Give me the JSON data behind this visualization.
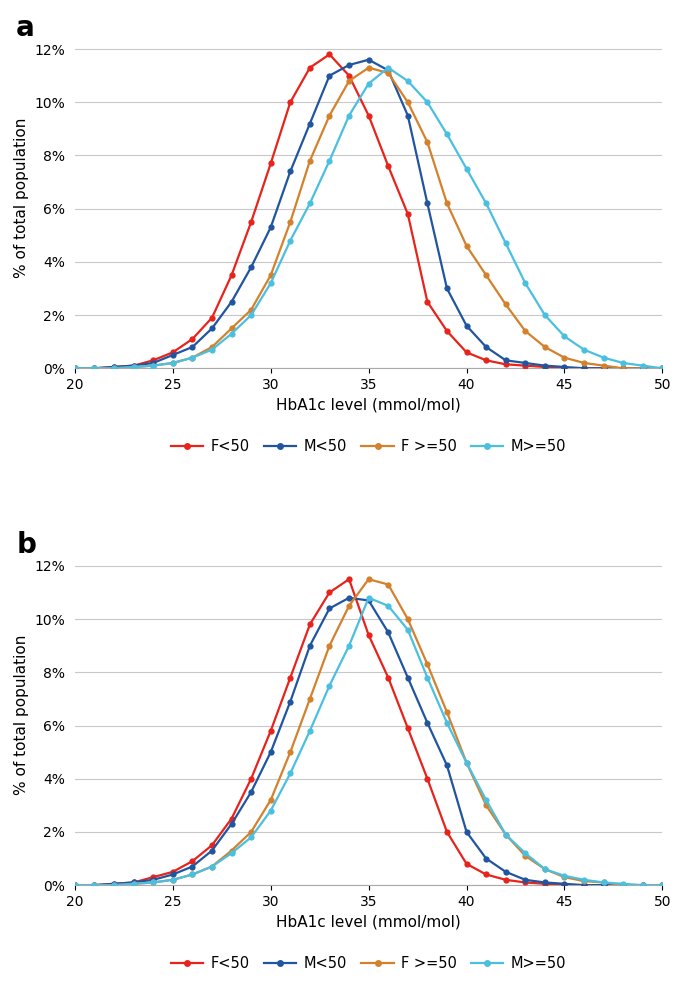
{
  "x": [
    20,
    21,
    22,
    23,
    24,
    25,
    26,
    27,
    28,
    29,
    30,
    31,
    32,
    33,
    34,
    35,
    36,
    37,
    38,
    39,
    40,
    41,
    42,
    43,
    44,
    45,
    46,
    47,
    48,
    49,
    50
  ],
  "panel_a": {
    "F<50": [
      0.0,
      0.0,
      0.05,
      0.1,
      0.3,
      0.6,
      1.1,
      1.9,
      3.5,
      5.5,
      7.7,
      10.0,
      11.3,
      11.8,
      11.0,
      9.5,
      7.6,
      5.8,
      2.5,
      1.4,
      0.6,
      0.3,
      0.15,
      0.1,
      0.05,
      0.0,
      0.0,
      0.0,
      0.0,
      0.0,
      0.0
    ],
    "M<50": [
      0.0,
      0.0,
      0.05,
      0.1,
      0.2,
      0.5,
      0.8,
      1.5,
      2.5,
      3.8,
      5.3,
      7.4,
      9.2,
      11.0,
      11.4,
      11.6,
      11.2,
      9.5,
      6.2,
      3.0,
      1.6,
      0.8,
      0.3,
      0.2,
      0.1,
      0.05,
      0.0,
      0.0,
      0.0,
      0.0,
      0.0
    ],
    "F>=50": [
      0.0,
      0.0,
      0.0,
      0.05,
      0.1,
      0.2,
      0.4,
      0.8,
      1.5,
      2.2,
      3.5,
      5.5,
      7.8,
      9.5,
      10.8,
      11.3,
      11.1,
      10.0,
      8.5,
      6.2,
      4.6,
      3.5,
      2.4,
      1.4,
      0.8,
      0.4,
      0.2,
      0.1,
      0.0,
      0.0,
      0.0
    ],
    "M>=50": [
      0.0,
      0.0,
      0.0,
      0.05,
      0.1,
      0.2,
      0.4,
      0.7,
      1.3,
      2.0,
      3.2,
      4.8,
      6.2,
      7.8,
      9.5,
      10.7,
      11.3,
      10.8,
      10.0,
      8.8,
      7.5,
      6.2,
      4.7,
      3.2,
      2.0,
      1.2,
      0.7,
      0.4,
      0.2,
      0.1,
      0.0
    ]
  },
  "panel_b": {
    "F<50": [
      0.0,
      0.0,
      0.05,
      0.1,
      0.3,
      0.5,
      0.9,
      1.5,
      2.5,
      4.0,
      5.8,
      7.8,
      9.8,
      11.0,
      11.5,
      9.4,
      7.8,
      5.9,
      4.0,
      2.0,
      0.8,
      0.4,
      0.2,
      0.1,
      0.05,
      0.0,
      0.0,
      0.0,
      0.0,
      0.0,
      0.0
    ],
    "M<50": [
      0.0,
      0.0,
      0.05,
      0.1,
      0.2,
      0.4,
      0.7,
      1.3,
      2.3,
      3.5,
      5.0,
      6.9,
      9.0,
      10.4,
      10.8,
      10.7,
      9.5,
      7.8,
      6.1,
      4.5,
      2.0,
      1.0,
      0.5,
      0.2,
      0.1,
      0.05,
      0.0,
      0.0,
      0.0,
      0.0,
      0.0
    ],
    "F>=50": [
      0.0,
      0.0,
      0.0,
      0.05,
      0.1,
      0.2,
      0.4,
      0.7,
      1.3,
      2.0,
      3.2,
      5.0,
      7.0,
      9.0,
      10.5,
      11.5,
      11.3,
      10.0,
      8.3,
      6.5,
      4.6,
      3.0,
      1.9,
      1.1,
      0.6,
      0.3,
      0.15,
      0.1,
      0.0,
      0.0,
      0.0
    ],
    "M>=50": [
      0.0,
      0.0,
      0.0,
      0.05,
      0.1,
      0.2,
      0.4,
      0.7,
      1.2,
      1.8,
      2.8,
      4.2,
      5.8,
      7.5,
      9.0,
      10.8,
      10.5,
      9.6,
      7.8,
      6.1,
      4.6,
      3.2,
      1.9,
      1.2,
      0.6,
      0.35,
      0.2,
      0.1,
      0.05,
      0.0,
      0.0
    ]
  },
  "colors": {
    "F<50": "#e8231b",
    "M<50": "#2155A0",
    "F>=50": "#D4812D",
    "M>=50": "#4BBFE0"
  },
  "series_labels": [
    "F<50",
    "M<50",
    "F >=50",
    "M>=50"
  ],
  "series_keys": [
    "F<50",
    "M<50",
    "F>=50",
    "M>=50"
  ],
  "xlabel": "HbA1c level (mmol/mol)",
  "ylabel": "% of total population",
  "xlim": [
    20,
    50
  ],
  "ylim": [
    0,
    12.5
  ],
  "yticks": [
    0,
    2,
    4,
    6,
    8,
    10,
    12
  ],
  "xticks": [
    20,
    25,
    30,
    35,
    40,
    45,
    50
  ],
  "panel_labels": [
    "a",
    "b"
  ],
  "bg_color": "#ffffff",
  "grid_color": "#c8c8c8"
}
